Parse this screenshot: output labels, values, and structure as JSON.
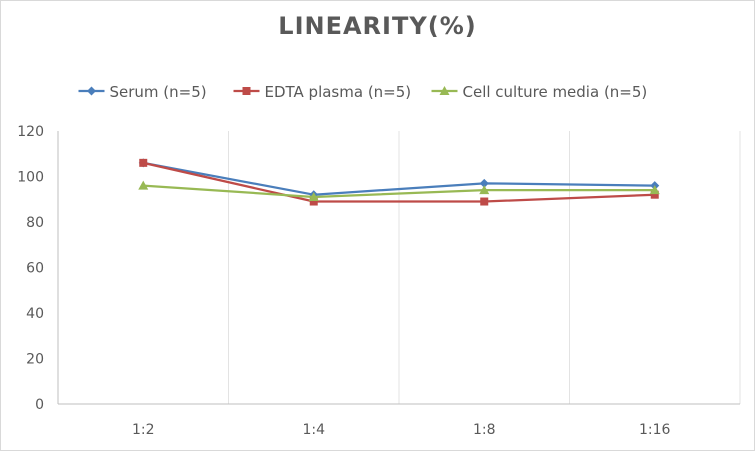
{
  "chart_data": {
    "type": "line",
    "title": "LINEARITY(%)",
    "xlabel": "",
    "ylabel": "",
    "categories": [
      "1:2",
      "1:4",
      "1:8",
      "1:16"
    ],
    "ylim": [
      0,
      120
    ],
    "yticks": [
      0,
      20,
      40,
      60,
      80,
      100,
      120
    ],
    "grid": "vertical",
    "legend": "top",
    "series": [
      {
        "name": "Serum (n=5)",
        "values": [
          106,
          92,
          97,
          96
        ],
        "color": "#4a7ebb",
        "marker": "diamond"
      },
      {
        "name": "EDTA plasma (n=5)",
        "values": [
          106,
          89,
          89,
          92
        ],
        "color": "#be4b48",
        "marker": "square"
      },
      {
        "name": "Cell culture media (n=5)",
        "values": [
          96,
          91,
          94,
          94
        ],
        "color": "#98b954",
        "marker": "triangle"
      }
    ]
  }
}
